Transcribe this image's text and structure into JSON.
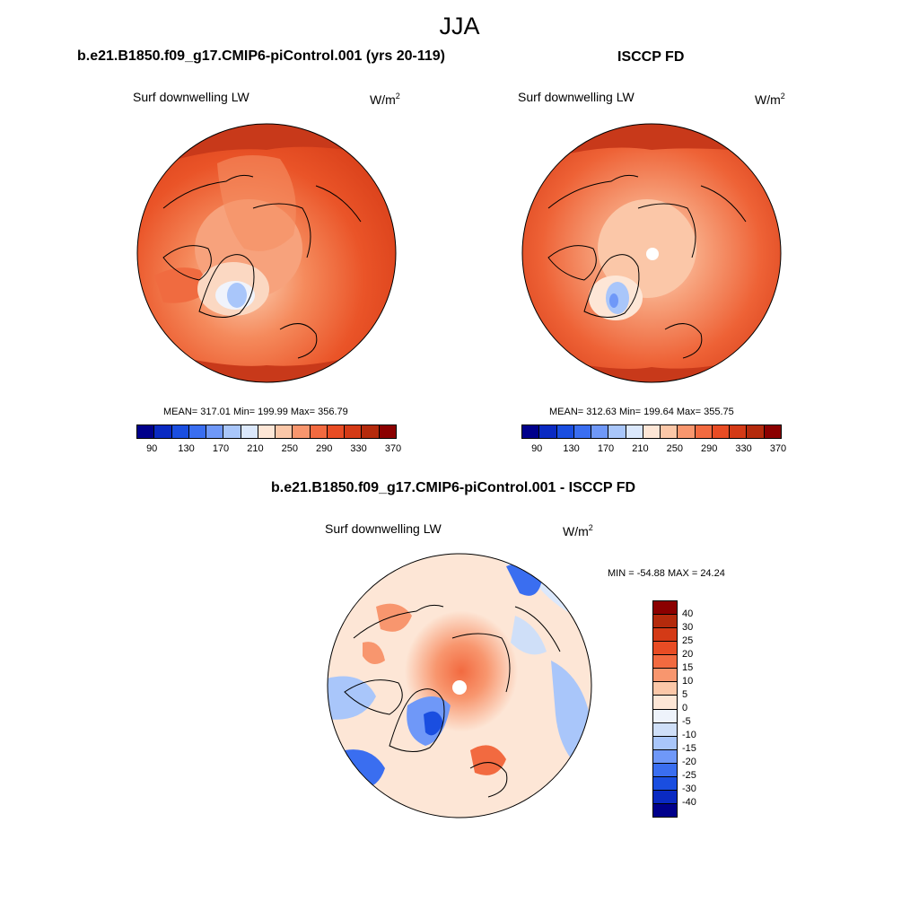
{
  "season": "JJA",
  "panels": [
    {
      "title": "b.e21.B1850.f09_g17.CMIP6-piControl.001 (yrs 20-119)",
      "variable": "Surf downwelling LW",
      "units_base": "W/m",
      "units_exp": "2",
      "stats": "MEAN= 317.01  Min= 199.99  Max= 356.79"
    },
    {
      "title": "ISCCP FD",
      "variable": "Surf downwelling LW",
      "units_base": "W/m",
      "units_exp": "2",
      "stats": "MEAN= 312.63  Min= 199.64  Max= 355.75"
    },
    {
      "title": "b.e21.B1850.f09_g17.CMIP6-piControl.001 - ISCCP FD",
      "variable": "Surf downwelling LW",
      "units_base": "W/m",
      "units_exp": "2",
      "stats": "MIN = -54.88 MAX =  24.24"
    }
  ],
  "abs_colorbar": {
    "colors": [
      "#00008b",
      "#0a2ac2",
      "#1a4ee0",
      "#3a6ef0",
      "#6f98f8",
      "#a9c6fa",
      "#dbe8fc",
      "#fde6d6",
      "#fbc7a8",
      "#f8966e",
      "#f26a40",
      "#e84c24",
      "#d43a16",
      "#b42a0c",
      "#8b0000"
    ],
    "ticks": [
      "90",
      "130",
      "170",
      "210",
      "250",
      "290",
      "330",
      "370"
    ]
  },
  "diff_colorbar": {
    "colors": [
      "#8b0000",
      "#b42a0c",
      "#d43a16",
      "#e84c24",
      "#f26a40",
      "#f8966e",
      "#fbc7a8",
      "#fde6d6",
      "#eef3fb",
      "#cfdff8",
      "#a9c6fa",
      "#6f98f8",
      "#3a6ef0",
      "#1a4ee0",
      "#0a2ac2",
      "#00008b"
    ],
    "ticks": [
      "40",
      "30",
      "25",
      "20",
      "15",
      "10",
      "5",
      "0",
      "-5",
      "-10",
      "-15",
      "-20",
      "-25",
      "-30",
      "-40"
    ]
  }
}
